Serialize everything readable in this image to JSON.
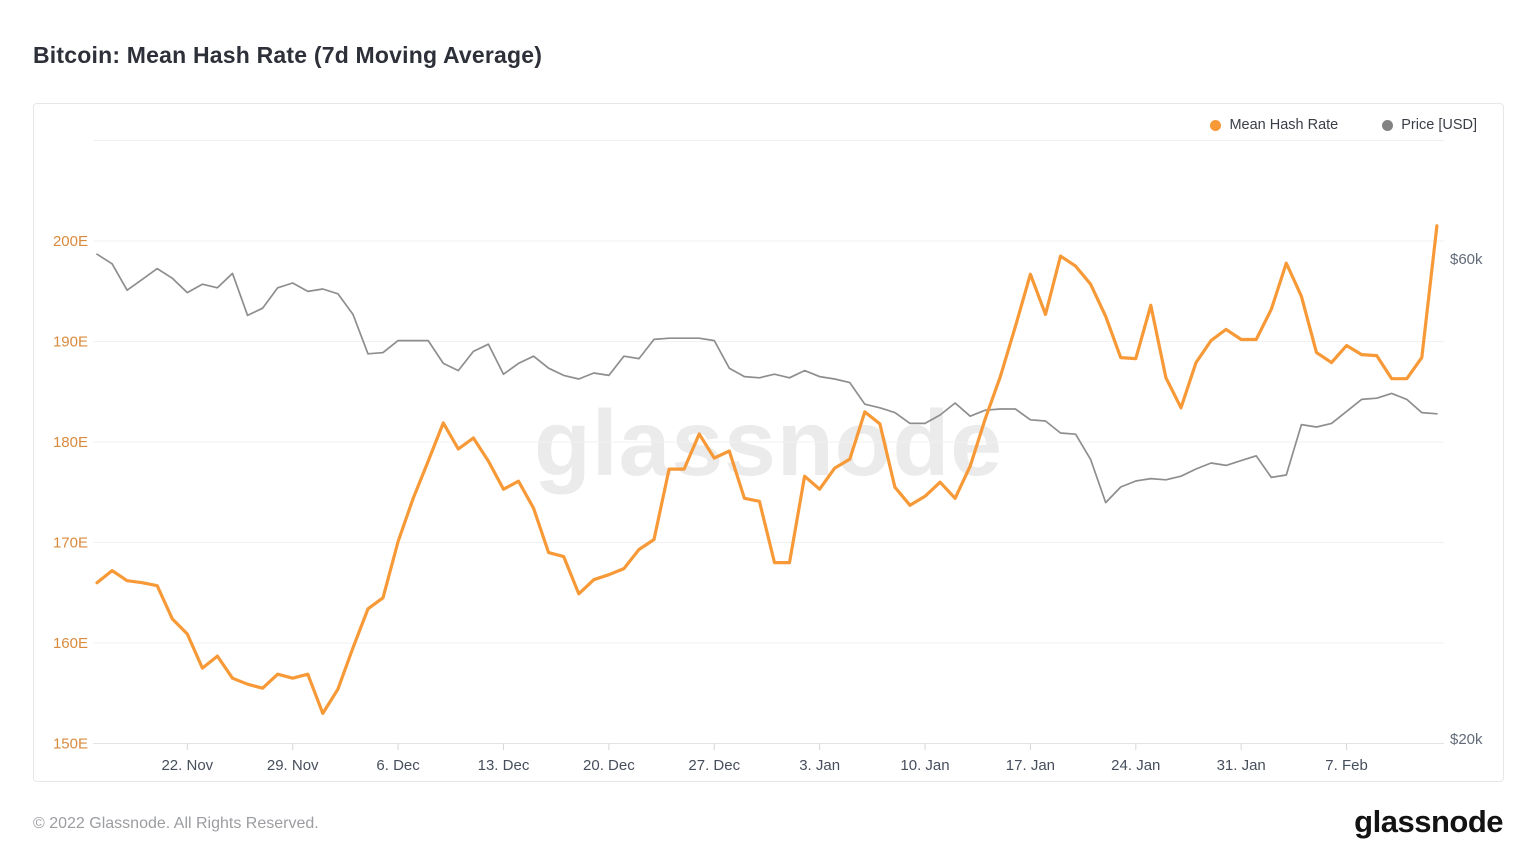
{
  "page": {
    "title": "Bitcoin: Mean Hash Rate (7d Moving Average)"
  },
  "legend": {
    "items": [
      {
        "label": "Mean Hash Rate",
        "color": "#f79937"
      },
      {
        "label": "Price [USD]",
        "color": "#828282"
      }
    ]
  },
  "watermark": "glassnode",
  "footer": {
    "copyright": "© 2022 Glassnode. All Rights Reserved.",
    "logo": "glassnode"
  },
  "chart_data": {
    "type": "line",
    "title": "Bitcoin: Mean Hash Rate (7d Moving Average)",
    "grid": "horizontal-only",
    "legend_position": "top-right",
    "x_axis": {
      "color": "#474f5c",
      "ticks": [
        {
          "label": "22. Nov",
          "t": 6
        },
        {
          "label": "29. Nov",
          "t": 13
        },
        {
          "label": "6. Dec",
          "t": 20
        },
        {
          "label": "13. Dec",
          "t": 27
        },
        {
          "label": "20. Dec",
          "t": 34
        },
        {
          "label": "27. Dec",
          "t": 41
        },
        {
          "label": "3. Jan",
          "t": 48
        },
        {
          "label": "10. Jan",
          "t": 55
        },
        {
          "label": "17. Jan",
          "t": 62
        },
        {
          "label": "24. Jan",
          "t": 69
        },
        {
          "label": "31. Jan",
          "t": 76
        },
        {
          "label": "7. Feb",
          "t": 83
        }
      ]
    },
    "hash_axis": {
      "side": "left",
      "unit": "EH/s",
      "color": "#d98a3d",
      "range": [
        150,
        210
      ],
      "gridline_values": [
        210,
        200,
        190,
        180,
        170,
        160,
        150
      ],
      "ticks": [
        {
          "label": "200E",
          "value": 200
        },
        {
          "label": "190E",
          "value": 190
        },
        {
          "label": "180E",
          "value": 180
        },
        {
          "label": "170E",
          "value": 170
        },
        {
          "label": "160E",
          "value": 160
        },
        {
          "label": "150E",
          "value": 150
        }
      ]
    },
    "price_axis": {
      "side": "right",
      "unit": "USD (thousands)",
      "color": "#626b78",
      "range_k": [
        20,
        60
      ],
      "ticks": [
        {
          "label": "$60k",
          "value": 60
        },
        {
          "label": "$20k",
          "value": 20
        }
      ]
    },
    "dates": [
      "2021-11-16",
      "2021-11-17",
      "2021-11-18",
      "2021-11-19",
      "2021-11-20",
      "2021-11-21",
      "2021-11-22",
      "2021-11-23",
      "2021-11-24",
      "2021-11-25",
      "2021-11-26",
      "2021-11-27",
      "2021-11-28",
      "2021-11-29",
      "2021-11-30",
      "2021-12-01",
      "2021-12-02",
      "2021-12-03",
      "2021-12-04",
      "2021-12-05",
      "2021-12-06",
      "2021-12-07",
      "2021-12-08",
      "2021-12-09",
      "2021-12-10",
      "2021-12-11",
      "2021-12-12",
      "2021-12-13",
      "2021-12-14",
      "2021-12-15",
      "2021-12-16",
      "2021-12-17",
      "2021-12-18",
      "2021-12-19",
      "2021-12-20",
      "2021-12-21",
      "2021-12-22",
      "2021-12-23",
      "2021-12-24",
      "2021-12-25",
      "2021-12-26",
      "2021-12-27",
      "2021-12-28",
      "2021-12-29",
      "2021-12-30",
      "2021-12-31",
      "2022-01-01",
      "2022-01-02",
      "2022-01-03",
      "2022-01-04",
      "2022-01-05",
      "2022-01-06",
      "2022-01-07",
      "2022-01-08",
      "2022-01-09",
      "2022-01-10",
      "2022-01-11",
      "2022-01-12",
      "2022-01-13",
      "2022-01-14",
      "2022-01-15",
      "2022-01-16",
      "2022-01-17",
      "2022-01-18",
      "2022-01-19",
      "2022-01-20",
      "2022-01-21",
      "2022-01-22",
      "2022-01-23",
      "2022-01-24",
      "2022-01-25",
      "2022-01-26",
      "2022-01-27",
      "2022-01-28",
      "2022-01-29",
      "2022-01-30",
      "2022-01-31",
      "2022-02-01",
      "2022-02-02",
      "2022-02-03",
      "2022-02-04",
      "2022-02-05",
      "2022-02-06",
      "2022-02-07",
      "2022-02-08",
      "2022-02-09",
      "2022-02-10",
      "2022-02-11",
      "2022-02-12",
      "2022-02-13"
    ],
    "series": [
      {
        "name": "Mean Hash Rate",
        "axis": "hash",
        "unit": "EH/s",
        "color": "#f79937",
        "stroke_width": 3.2,
        "values": [
          166.0,
          167.2,
          166.2,
          166.0,
          165.7,
          162.4,
          160.9,
          157.5,
          158.7,
          156.5,
          155.9,
          155.5,
          156.9,
          156.5,
          156.9,
          153.0,
          155.4,
          159.5,
          163.4,
          164.5,
          170.1,
          174.4,
          178.1,
          181.9,
          179.3,
          180.4,
          178.1,
          175.3,
          176.1,
          173.4,
          169.0,
          168.6,
          164.9,
          166.3,
          166.8,
          167.4,
          169.3,
          170.3,
          177.3,
          177.3,
          180.8,
          178.4,
          179.1,
          174.4,
          174.1,
          168.0,
          168.0,
          176.6,
          175.3,
          177.4,
          178.3,
          183.0,
          181.8,
          175.5,
          173.7,
          174.6,
          176.0,
          174.4,
          177.6,
          182.3,
          186.5,
          191.5,
          196.7,
          192.7,
          198.5,
          197.5,
          195.7,
          192.5,
          188.4,
          188.3,
          193.6,
          186.4,
          183.4,
          187.9,
          190.1,
          191.2,
          190.2,
          190.2,
          193.2,
          197.8,
          194.5,
          188.9,
          187.9,
          189.6,
          188.7,
          188.6,
          186.3,
          186.3,
          188.4,
          201.5
        ]
      },
      {
        "name": "Price [USD]",
        "axis": "price",
        "unit": "$k",
        "color": "#8e8e8e",
        "stroke_width": 1.7,
        "values": [
          60.4,
          59.6,
          57.4,
          58.3,
          59.2,
          58.4,
          57.2,
          57.9,
          57.6,
          58.8,
          55.3,
          55.9,
          57.6,
          58.0,
          57.3,
          57.5,
          57.1,
          55.4,
          52.1,
          52.2,
          53.2,
          53.2,
          53.2,
          51.3,
          50.7,
          52.3,
          52.9,
          50.4,
          51.3,
          51.9,
          50.9,
          50.3,
          50.0,
          50.5,
          50.3,
          51.9,
          51.7,
          53.3,
          53.4,
          53.4,
          53.4,
          53.2,
          50.9,
          50.2,
          50.1,
          50.4,
          50.1,
          50.7,
          50.2,
          50.0,
          49.7,
          47.9,
          47.6,
          47.2,
          46.3,
          46.3,
          47.0,
          48.0,
          46.9,
          47.4,
          47.5,
          47.5,
          46.6,
          46.5,
          45.5,
          45.4,
          43.3,
          39.7,
          41.0,
          41.5,
          41.7,
          41.6,
          41.9,
          42.5,
          43.0,
          42.8,
          43.2,
          43.6,
          41.8,
          42.0,
          46.2,
          46.0,
          46.3,
          47.3,
          48.3,
          48.4,
          48.8,
          48.3,
          47.2,
          47.1
        ]
      }
    ]
  }
}
